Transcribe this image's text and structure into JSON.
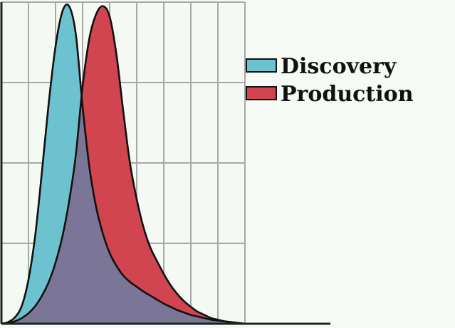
{
  "chart_data": {
    "type": "area",
    "title": "",
    "xlabel": "",
    "ylabel": "",
    "x_range": [
      0,
      9
    ],
    "y_range": [
      0,
      4
    ],
    "grid": true,
    "legend_position": "right",
    "x": [
      0,
      0.25,
      0.5,
      0.75,
      1,
      1.25,
      1.5,
      1.75,
      2,
      2.25,
      2.5,
      2.75,
      3,
      3.25,
      3.5,
      3.75,
      4,
      4.25,
      4.5,
      4.75,
      5,
      5.25,
      5.5,
      5.75,
      6,
      6.25,
      6.5,
      6.75,
      7,
      7.25,
      7.5,
      7.75,
      8,
      8.25,
      8.5,
      8.75,
      9
    ],
    "series": [
      {
        "name": "Discovery",
        "color": "#6cc3cf",
        "values": [
          0,
          0.02,
          0.08,
          0.22,
          0.55,
          1.1,
          1.9,
          2.75,
          3.45,
          3.88,
          3.95,
          3.6,
          2.7,
          1.95,
          1.45,
          1.12,
          0.88,
          0.72,
          0.6,
          0.52,
          0.46,
          0.4,
          0.35,
          0.3,
          0.25,
          0.21,
          0.17,
          0.14,
          0.11,
          0.09,
          0.07,
          0.05,
          0.04,
          0.03,
          0.02,
          0.01,
          0
        ]
      },
      {
        "name": "Production",
        "color": "#d0454f",
        "values": [
          0,
          0.01,
          0.03,
          0.07,
          0.13,
          0.22,
          0.35,
          0.52,
          0.76,
          1.08,
          1.52,
          2.1,
          2.95,
          3.55,
          3.85,
          3.95,
          3.82,
          3.35,
          2.65,
          2.0,
          1.55,
          1.2,
          0.95,
          0.78,
          0.62,
          0.48,
          0.37,
          0.28,
          0.21,
          0.15,
          0.11,
          0.07,
          0.05,
          0.03,
          0.02,
          0.01,
          0
        ]
      }
    ],
    "overlap_color": "#7b7697",
    "legend": [
      {
        "label": "Discovery",
        "color": "#6cc3cf"
      },
      {
        "label": "Production",
        "color": "#d0454f"
      }
    ]
  }
}
